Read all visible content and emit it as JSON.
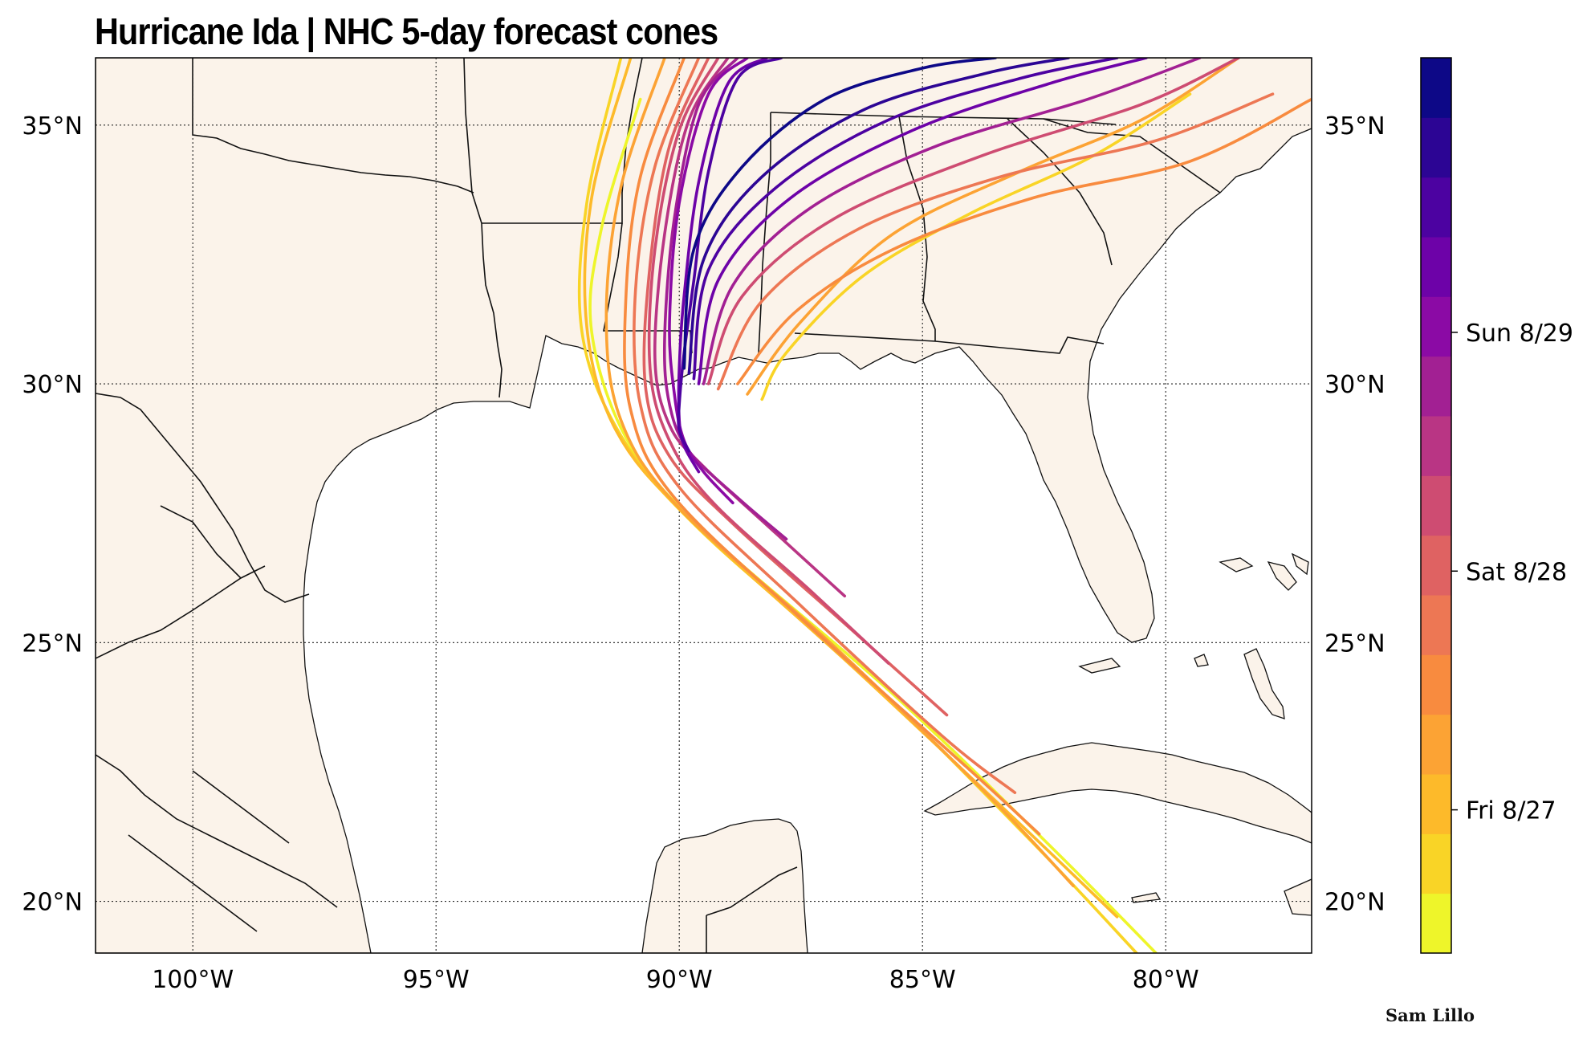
{
  "title": "Hurricane Ida | NHC 5-day forecast cones",
  "credit": "Sam Lillo",
  "map": {
    "extent": {
      "lon_min": -102,
      "lon_max": -77,
      "lat_min": 19,
      "lat_max": 36.3
    },
    "land_color": "#fbf3ea",
    "ocean_color": "#ffffff",
    "grid_style": "dotted",
    "lat_ticks": [
      {
        "value": 35,
        "label": "35°N"
      },
      {
        "value": 30,
        "label": "30°N"
      },
      {
        "value": 25,
        "label": "25°N"
      },
      {
        "value": 20,
        "label": "20°N"
      }
    ],
    "lon_ticks": [
      {
        "value": -100,
        "label": "100°W"
      },
      {
        "value": -95,
        "label": "95°W"
      },
      {
        "value": -90,
        "label": "90°W"
      },
      {
        "value": -85,
        "label": "85°W"
      },
      {
        "value": -80,
        "label": "80°W"
      }
    ]
  },
  "colorbar": {
    "colormap": "plasma",
    "colors": [
      "#eef52a",
      "#f9d426",
      "#fdba2a",
      "#fca334",
      "#f88b3f",
      "#ed7754",
      "#df6262",
      "#ce4c72",
      "#b93584",
      "#a22093",
      "#8b0aa5",
      "#6d02a8",
      "#4c02a1",
      "#2c0594",
      "#0d0887"
    ],
    "labels": [
      {
        "index": 2.4,
        "label": "Fri 8/27"
      },
      {
        "index": 6.4,
        "label": "Sat 8/28"
      },
      {
        "index": 10.4,
        "label": "Sun 8/29"
      }
    ]
  },
  "chart_data": {
    "type": "map",
    "title": "Hurricane Ida | NHC 5-day forecast cones",
    "cones": [
      {
        "color_index": 0,
        "points": [
          [
            -80.2,
            19
          ],
          [
            -82.3,
            21.0
          ],
          [
            -85.6,
            24.0
          ],
          [
            -89.3,
            27.0
          ],
          [
            -91.0,
            28.8
          ],
          [
            -91.8,
            31.0
          ],
          [
            -91.6,
            33.0
          ],
          [
            -90.8,
            35.5
          ]
        ]
      },
      {
        "color_index": 1,
        "points": [
          [
            -80.6,
            19
          ],
          [
            -82.7,
            21.1
          ],
          [
            -86.0,
            24.2
          ],
          [
            -89.6,
            27.2
          ],
          [
            -91.2,
            29.0
          ],
          [
            -92.0,
            31.0
          ],
          [
            -91.9,
            33.5
          ],
          [
            -91.2,
            36.3
          ]
        ]
      },
      {
        "color_index": 2,
        "points": [
          [
            -81.0,
            19.7
          ],
          [
            -83.0,
            21.5
          ],
          [
            -86.4,
            24.5
          ],
          [
            -89.8,
            27.4
          ],
          [
            -91.3,
            29.1
          ],
          [
            -91.9,
            31.1
          ],
          [
            -91.8,
            33.6
          ],
          [
            -91.0,
            36.3
          ]
        ]
      },
      {
        "color_index": 3,
        "points": [
          [
            -81.9,
            20.3
          ],
          [
            -83.6,
            22.0
          ],
          [
            -86.9,
            25.0
          ],
          [
            -90.0,
            27.6
          ],
          [
            -91.2,
            29.3
          ],
          [
            -91.5,
            31.3
          ],
          [
            -91.2,
            33.8
          ],
          [
            -90.3,
            36.3
          ]
        ]
      },
      {
        "color_index": 4,
        "points": [
          [
            -82.6,
            21.3
          ],
          [
            -84.1,
            22.6
          ],
          [
            -87.3,
            25.3
          ],
          [
            -90.1,
            27.8
          ],
          [
            -91.0,
            29.5
          ],
          [
            -91.1,
            31.6
          ],
          [
            -90.8,
            34.0
          ],
          [
            -89.9,
            36.3
          ]
        ]
      },
      {
        "color_index": 5,
        "points": [
          [
            -83.1,
            22.1
          ],
          [
            -84.6,
            23.2
          ],
          [
            -87.6,
            25.8
          ],
          [
            -90.0,
            28.0
          ],
          [
            -90.8,
            29.6
          ],
          [
            -90.9,
            31.8
          ],
          [
            -90.5,
            34.2
          ],
          [
            -89.6,
            36.3
          ]
        ]
      },
      {
        "color_index": 6,
        "points": [
          [
            -84.5,
            23.6
          ],
          [
            -86.4,
            25.2
          ],
          [
            -88.9,
            27.3
          ],
          [
            -90.2,
            28.6
          ],
          [
            -90.7,
            30.0
          ],
          [
            -90.6,
            32.3
          ],
          [
            -90.2,
            34.6
          ],
          [
            -89.4,
            36.3
          ]
        ]
      },
      {
        "color_index": 7,
        "points": [
          [
            -85.7,
            24.6
          ],
          [
            -87.3,
            26.0
          ],
          [
            -89.3,
            27.7
          ],
          [
            -90.2,
            28.9
          ],
          [
            -90.6,
            30.3
          ],
          [
            -90.5,
            32.6
          ],
          [
            -90.0,
            34.9
          ],
          [
            -89.2,
            36.3
          ]
        ]
      },
      {
        "color_index": 8,
        "points": [
          [
            -86.6,
            25.9
          ],
          [
            -88.0,
            27.1
          ],
          [
            -89.5,
            28.4
          ],
          [
            -90.2,
            29.2
          ],
          [
            -90.5,
            30.5
          ],
          [
            -90.3,
            32.9
          ],
          [
            -89.8,
            35.1
          ],
          [
            -89.0,
            36.3
          ]
        ]
      },
      {
        "color_index": 9,
        "points": [
          [
            -87.8,
            27.0
          ],
          [
            -88.8,
            27.8
          ],
          [
            -89.8,
            28.7
          ],
          [
            -90.2,
            29.6
          ],
          [
            -90.3,
            30.9
          ],
          [
            -90.1,
            33.2
          ],
          [
            -89.6,
            35.4
          ],
          [
            -88.8,
            36.3
          ]
        ]
      },
      {
        "color_index": 10,
        "points": [
          [
            -88.9,
            27.7
          ],
          [
            -89.5,
            28.3
          ],
          [
            -89.9,
            28.9
          ],
          [
            -90.1,
            29.8
          ],
          [
            -90.2,
            31.2
          ],
          [
            -90.0,
            33.5
          ],
          [
            -89.4,
            35.6
          ],
          [
            -88.6,
            36.3
          ]
        ]
      },
      {
        "color_index": 11,
        "points": [
          [
            -89.6,
            28.3
          ],
          [
            -89.9,
            28.8
          ],
          [
            -90.0,
            29.3
          ],
          [
            -90.0,
            30.3
          ],
          [
            -89.9,
            31.7
          ],
          [
            -89.6,
            33.9
          ],
          [
            -89.0,
            35.8
          ],
          [
            -88.2,
            36.3
          ]
        ]
      },
      {
        "color_index": 12,
        "points": [
          [
            -89.8,
            28.7
          ],
          [
            -90.0,
            29.1
          ],
          [
            -90.0,
            29.6
          ],
          [
            -89.9,
            30.6
          ],
          [
            -89.7,
            32.0
          ],
          [
            -89.4,
            34.1
          ],
          [
            -88.8,
            35.9
          ],
          [
            -87.9,
            36.3
          ]
        ]
      }
    ],
    "cone_ne_branches": [
      {
        "color_index": 1,
        "points": [
          [
            -88.3,
            29.7
          ],
          [
            -87.8,
            30.6
          ],
          [
            -86.2,
            32.1
          ],
          [
            -84.0,
            33.3
          ],
          [
            -81.5,
            34.4
          ],
          [
            -79.5,
            35.6
          ]
        ]
      },
      {
        "color_index": 3,
        "points": [
          [
            -88.6,
            29.8
          ],
          [
            -87.5,
            31.2
          ],
          [
            -85.6,
            32.9
          ],
          [
            -83.0,
            34.1
          ],
          [
            -80.5,
            35.1
          ],
          [
            -78.5,
            36.3
          ]
        ]
      },
      {
        "color_index": 4,
        "points": [
          [
            -88.8,
            30.0
          ],
          [
            -87.6,
            31.4
          ],
          [
            -85.6,
            32.6
          ],
          [
            -82.7,
            33.6
          ],
          [
            -79.5,
            34.3
          ],
          [
            -77.0,
            35.5
          ]
        ]
      },
      {
        "color_index": 5,
        "points": [
          [
            -89.2,
            29.9
          ],
          [
            -88.3,
            31.6
          ],
          [
            -86.3,
            33.0
          ],
          [
            -83.4,
            34.0
          ],
          [
            -80.2,
            34.7
          ],
          [
            -77.8,
            35.6
          ]
        ]
      },
      {
        "color_index": 7,
        "points": [
          [
            -89.4,
            30.0
          ],
          [
            -88.7,
            31.7
          ],
          [
            -86.8,
            33.2
          ],
          [
            -83.8,
            34.4
          ],
          [
            -80.5,
            35.4
          ],
          [
            -78.5,
            36.3
          ]
        ]
      },
      {
        "color_index": 9,
        "points": [
          [
            -89.5,
            30.0
          ],
          [
            -88.9,
            31.9
          ],
          [
            -87.3,
            33.4
          ],
          [
            -84.7,
            34.6
          ],
          [
            -81.6,
            35.5
          ],
          [
            -79.3,
            36.3
          ]
        ]
      },
      {
        "color_index": 11,
        "points": [
          [
            -89.6,
            30.0
          ],
          [
            -89.2,
            32.0
          ],
          [
            -87.7,
            33.6
          ],
          [
            -85.2,
            34.9
          ],
          [
            -82.4,
            35.8
          ],
          [
            -80.4,
            36.3
          ]
        ]
      },
      {
        "color_index": 12,
        "points": [
          [
            -89.7,
            30.1
          ],
          [
            -89.4,
            32.2
          ],
          [
            -88.0,
            33.8
          ],
          [
            -85.7,
            35.1
          ],
          [
            -83.0,
            35.9
          ],
          [
            -81.0,
            36.3
          ]
        ]
      },
      {
        "color_index": 13,
        "points": [
          [
            -89.8,
            30.2
          ],
          [
            -89.5,
            32.4
          ],
          [
            -88.3,
            34.0
          ],
          [
            -86.2,
            35.3
          ],
          [
            -83.7,
            36.0
          ],
          [
            -82.0,
            36.3
          ]
        ]
      },
      {
        "color_index": 14,
        "points": [
          [
            -89.9,
            30.3
          ],
          [
            -89.7,
            32.6
          ],
          [
            -88.7,
            34.2
          ],
          [
            -87.0,
            35.5
          ],
          [
            -85.0,
            36.1
          ],
          [
            -83.5,
            36.3
          ]
        ]
      }
    ]
  }
}
